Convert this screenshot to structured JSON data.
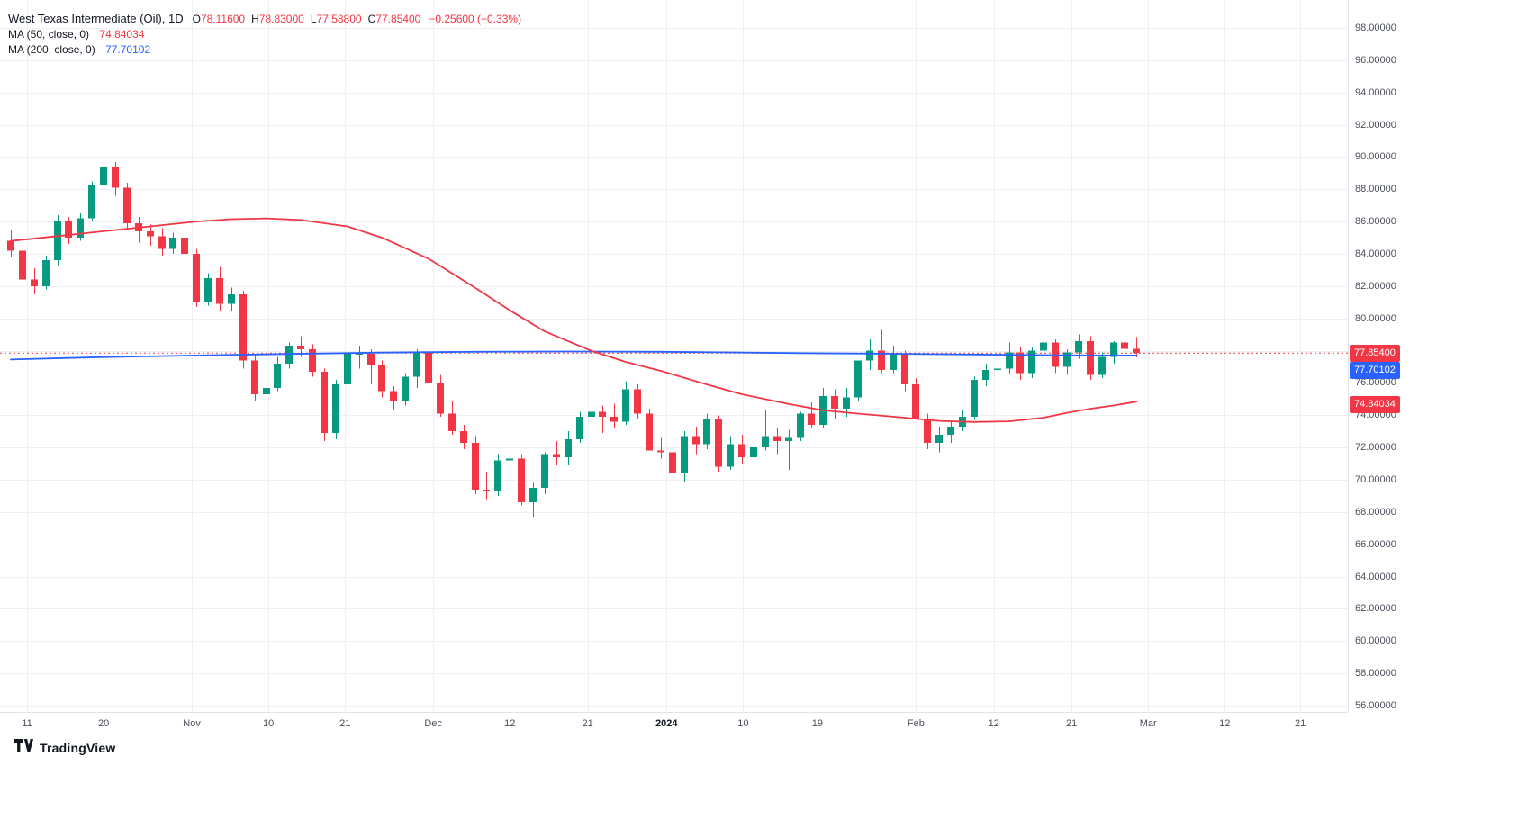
{
  "header": {
    "symbol": "West Texas Intermediate (Oil), 1D",
    "open_label": "O",
    "open": "78.11600",
    "high_label": "H",
    "high": "78.83000",
    "low_label": "L",
    "low": "77.58800",
    "close_label": "C",
    "close": "77.85400",
    "change": "−0.25600 (−0.33%)"
  },
  "indicators": [
    {
      "label": "MA (50, close, 0)",
      "value": "74.84034",
      "color": "#f23645"
    },
    {
      "label": "MA (200, close, 0)",
      "value": "77.70102",
      "color": "#2962ff"
    }
  ],
  "footer": {
    "brand": "TradingView"
  },
  "chart_data": {
    "type": "candlestick",
    "title": "West Texas Intermediate (Oil), 1D",
    "ylim": [
      56,
      98
    ],
    "grid": true,
    "colors": {
      "up": "#089981",
      "down": "#f23645",
      "grid": "#eef0f6",
      "ma50": "#f23645",
      "ma200": "#2962ff"
    },
    "current_price": 77.854,
    "y_ticks": [
      "98.00000",
      "96.00000",
      "94.00000",
      "92.00000",
      "90.00000",
      "88.00000",
      "86.00000",
      "84.00000",
      "82.00000",
      "80.00000",
      "78.00000",
      "76.00000",
      "74.00000",
      "72.00000",
      "70.00000",
      "68.00000",
      "66.00000",
      "64.00000",
      "62.00000",
      "60.00000",
      "58.00000",
      "56.00000"
    ],
    "x_ticks": [
      {
        "label": "11",
        "index": 1.4
      },
      {
        "label": "20",
        "index": 8
      },
      {
        "label": "Nov",
        "index": 15.6
      },
      {
        "label": "10",
        "index": 22.2
      },
      {
        "label": "21",
        "index": 28.8
      },
      {
        "label": "Dec",
        "index": 36.4
      },
      {
        "label": "12",
        "index": 43
      },
      {
        "label": "21",
        "index": 49.7
      },
      {
        "label": "2024",
        "index": 56.5,
        "bold": true
      },
      {
        "label": "10",
        "index": 63.1
      },
      {
        "label": "19",
        "index": 69.5
      },
      {
        "label": "Feb",
        "index": 78
      },
      {
        "label": "12",
        "index": 84.7
      },
      {
        "label": "21",
        "index": 91.4
      },
      {
        "label": "Mar",
        "index": 98
      },
      {
        "label": "12",
        "index": 104.6
      },
      {
        "label": "21",
        "index": 111.1
      }
    ],
    "candles": [
      [
        84.8,
        85.5,
        83.8,
        84.2
      ],
      [
        84.2,
        84.6,
        81.9,
        82.4
      ],
      [
        82.4,
        83.1,
        81.5,
        82.0
      ],
      [
        82.0,
        83.9,
        81.8,
        83.6
      ],
      [
        83.6,
        86.4,
        83.3,
        86.0
      ],
      [
        86.0,
        86.3,
        84.6,
        85.0
      ],
      [
        85.0,
        86.5,
        84.8,
        86.2
      ],
      [
        86.2,
        88.5,
        86.0,
        88.3
      ],
      [
        88.3,
        89.8,
        87.9,
        89.4
      ],
      [
        89.4,
        89.7,
        87.6,
        88.1
      ],
      [
        88.1,
        88.4,
        85.5,
        85.9
      ],
      [
        85.9,
        86.3,
        84.7,
        85.4
      ],
      [
        85.4,
        85.8,
        84.5,
        85.1
      ],
      [
        85.1,
        85.6,
        83.9,
        84.3
      ],
      [
        84.3,
        85.3,
        84.0,
        85.0
      ],
      [
        85.0,
        85.4,
        83.7,
        84.0
      ],
      [
        84.0,
        84.3,
        80.7,
        81.0
      ],
      [
        81.0,
        82.8,
        80.8,
        82.5
      ],
      [
        82.5,
        83.2,
        80.5,
        80.9
      ],
      [
        80.9,
        81.9,
        80.5,
        81.5
      ],
      [
        81.5,
        81.7,
        76.9,
        77.4
      ],
      [
        77.4,
        77.8,
        74.9,
        75.3
      ],
      [
        75.3,
        76.5,
        74.7,
        75.7
      ],
      [
        75.7,
        77.6,
        75.5,
        77.2
      ],
      [
        77.2,
        78.5,
        76.9,
        78.3
      ],
      [
        78.3,
        78.9,
        77.6,
        78.1
      ],
      [
        78.1,
        78.4,
        76.4,
        76.7
      ],
      [
        76.7,
        76.9,
        72.4,
        72.9
      ],
      [
        72.9,
        76.2,
        72.5,
        75.9
      ],
      [
        75.9,
        78.0,
        75.6,
        77.8
      ],
      [
        77.8,
        78.3,
        76.9,
        77.8
      ],
      [
        77.8,
        78.1,
        75.9,
        77.1
      ],
      [
        77.1,
        77.4,
        75.1,
        75.5
      ],
      [
        75.5,
        75.8,
        74.3,
        74.9
      ],
      [
        74.9,
        76.6,
        74.6,
        76.4
      ],
      [
        76.4,
        78.1,
        75.7,
        77.9
      ],
      [
        77.9,
        79.6,
        75.4,
        76.0
      ],
      [
        76.0,
        76.5,
        73.9,
        74.1
      ],
      [
        74.1,
        74.9,
        72.8,
        73.0
      ],
      [
        73.0,
        73.4,
        71.9,
        72.3
      ],
      [
        72.3,
        72.7,
        69.1,
        69.4
      ],
      [
        69.4,
        70.5,
        68.8,
        69.3
      ],
      [
        69.3,
        71.6,
        69.0,
        71.2
      ],
      [
        71.2,
        71.8,
        70.2,
        71.3
      ],
      [
        71.3,
        71.6,
        68.4,
        68.6
      ],
      [
        68.6,
        69.8,
        67.7,
        69.5
      ],
      [
        69.5,
        71.7,
        69.1,
        71.6
      ],
      [
        71.6,
        72.4,
        70.9,
        71.4
      ],
      [
        71.4,
        73.0,
        70.9,
        72.5
      ],
      [
        72.5,
        74.2,
        72.3,
        73.9
      ],
      [
        73.9,
        75.0,
        73.5,
        74.2
      ],
      [
        74.2,
        74.6,
        72.9,
        73.9
      ],
      [
        73.9,
        74.7,
        73.2,
        73.6
      ],
      [
        73.6,
        76.1,
        73.4,
        75.6
      ],
      [
        75.6,
        75.9,
        73.8,
        74.1
      ],
      [
        74.1,
        74.4,
        71.8,
        71.8
      ],
      [
        71.8,
        72.6,
        71.3,
        71.7
      ],
      [
        71.7,
        73.6,
        70.1,
        70.4
      ],
      [
        70.4,
        73.0,
        69.9,
        72.7
      ],
      [
        72.7,
        73.3,
        71.6,
        72.2
      ],
      [
        72.2,
        74.1,
        71.9,
        73.8
      ],
      [
        73.8,
        74.0,
        70.5,
        70.8
      ],
      [
        70.8,
        72.7,
        70.6,
        72.2
      ],
      [
        72.2,
        72.8,
        71.0,
        71.4
      ],
      [
        71.4,
        75.2,
        71.3,
        72.0
      ],
      [
        72.0,
        74.3,
        71.8,
        72.7
      ],
      [
        72.7,
        73.2,
        71.6,
        72.4
      ],
      [
        72.4,
        73.1,
        70.6,
        72.6
      ],
      [
        72.6,
        74.2,
        72.4,
        74.1
      ],
      [
        74.1,
        74.8,
        73.2,
        73.4
      ],
      [
        73.4,
        75.7,
        73.2,
        75.2
      ],
      [
        75.2,
        75.6,
        73.8,
        74.4
      ],
      [
        74.4,
        75.7,
        73.9,
        75.1
      ],
      [
        75.1,
        77.3,
        74.9,
        77.4
      ],
      [
        77.4,
        78.7,
        76.8,
        78.0
      ],
      [
        78.0,
        79.3,
        76.6,
        76.8
      ],
      [
        76.8,
        78.3,
        76.6,
        77.8
      ],
      [
        77.8,
        78.0,
        75.5,
        75.9
      ],
      [
        75.9,
        76.3,
        73.8,
        73.8
      ],
      [
        73.8,
        74.1,
        71.9,
        72.3
      ],
      [
        72.3,
        73.3,
        71.7,
        72.8
      ],
      [
        72.8,
        73.6,
        72.3,
        73.3
      ],
      [
        73.3,
        74.3,
        73.0,
        73.9
      ],
      [
        73.9,
        76.4,
        73.7,
        76.2
      ],
      [
        76.2,
        77.2,
        75.8,
        76.8
      ],
      [
        76.8,
        77.4,
        76.0,
        76.9
      ],
      [
        76.9,
        78.5,
        76.6,
        77.9
      ],
      [
        77.9,
        78.2,
        76.2,
        76.6
      ],
      [
        76.6,
        78.2,
        76.3,
        78.0
      ],
      [
        78.0,
        79.2,
        77.9,
        78.5
      ],
      [
        78.5,
        78.7,
        76.6,
        77.0
      ],
      [
        77.0,
        78.1,
        76.5,
        77.9
      ],
      [
        77.9,
        79.0,
        77.5,
        78.6
      ],
      [
        78.6,
        78.9,
        76.2,
        76.5
      ],
      [
        76.5,
        77.9,
        76.3,
        77.6
      ],
      [
        77.6,
        78.6,
        77.2,
        78.5
      ],
      [
        78.5,
        78.9,
        77.7,
        78.11
      ],
      [
        78.116,
        78.83,
        77.588,
        77.854
      ]
    ],
    "ma50": {
      "name": "MA (50, close, 0)",
      "color": "#f23645",
      "points": [
        [
          0,
          84.8
        ],
        [
          4,
          85.1
        ],
        [
          8,
          85.4
        ],
        [
          12,
          85.7
        ],
        [
          16,
          86.0
        ],
        [
          19,
          86.15
        ],
        [
          22,
          86.2
        ],
        [
          25,
          86.1
        ],
        [
          29,
          85.7
        ],
        [
          32,
          85.0
        ],
        [
          36,
          83.7
        ],
        [
          40,
          81.9
        ],
        [
          43,
          80.5
        ],
        [
          46,
          79.2
        ],
        [
          50,
          78.0
        ],
        [
          53,
          77.3
        ],
        [
          56,
          76.75
        ],
        [
          60,
          75.9
        ],
        [
          63,
          75.3
        ],
        [
          67,
          74.7
        ],
        [
          70,
          74.3
        ],
        [
          73,
          74.1
        ],
        [
          77,
          73.85
        ],
        [
          80,
          73.65
        ],
        [
          83,
          73.58
        ],
        [
          86,
          73.62
        ],
        [
          89,
          73.85
        ],
        [
          91,
          74.15
        ],
        [
          93,
          74.4
        ],
        [
          95,
          74.6
        ],
        [
          97,
          74.84
        ]
      ]
    },
    "ma200": {
      "name": "MA (200, close, 0)",
      "color": "#2962ff",
      "points": [
        [
          0,
          77.45
        ],
        [
          8,
          77.6
        ],
        [
          16,
          77.7
        ],
        [
          24,
          77.8
        ],
        [
          32,
          77.88
        ],
        [
          40,
          77.93
        ],
        [
          48,
          77.95
        ],
        [
          56,
          77.93
        ],
        [
          62,
          77.89
        ],
        [
          68,
          77.85
        ],
        [
          74,
          77.82
        ],
        [
          80,
          77.78
        ],
        [
          86,
          77.74
        ],
        [
          92,
          77.71
        ],
        [
          97,
          77.7
        ]
      ]
    },
    "axis_badges": [
      {
        "text": "77.85400",
        "price": 77.854,
        "color": "#f23645",
        "dy": 0
      },
      {
        "text": "77.70102",
        "price": 77.70102,
        "color": "#2962ff",
        "dy": 17
      },
      {
        "text": "74.84034",
        "price": 74.84034,
        "color": "#f23645",
        "dy": 3
      }
    ]
  }
}
